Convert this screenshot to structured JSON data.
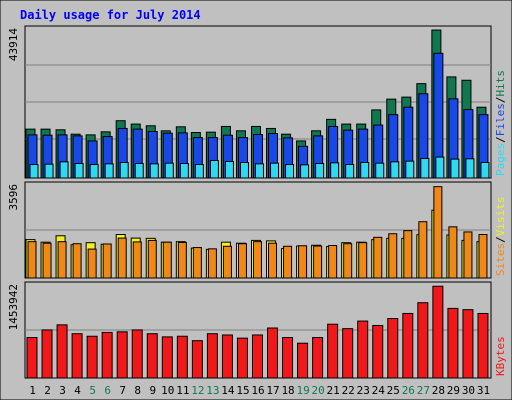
{
  "chart_data": [
    {
      "type": "bar",
      "title": "Daily usage for July 2014",
      "ymax_label": "43914",
      "ylim": [
        0,
        43914
      ],
      "categories": [
        "1",
        "2",
        "3",
        "4",
        "5",
        "6",
        "7",
        "8",
        "9",
        "10",
        "11",
        "12",
        "13",
        "14",
        "15",
        "16",
        "17",
        "18",
        "19",
        "20",
        "21",
        "22",
        "23",
        "24",
        "25",
        "26",
        "27",
        "28",
        "29",
        "30",
        "31"
      ],
      "weekend_days": [
        "5",
        "6",
        "12",
        "13",
        "19",
        "20",
        "26",
        "27"
      ],
      "legend": [
        "Pages",
        "/",
        "Files",
        "/",
        "Hits"
      ],
      "series": [
        {
          "name": "Hits",
          "color": "#107850",
          "values": [
            14500,
            14500,
            14300,
            13000,
            12800,
            13700,
            17000,
            16000,
            15500,
            14000,
            15200,
            13500,
            13600,
            15300,
            14000,
            15300,
            14700,
            13000,
            11000,
            14000,
            17400,
            16000,
            16000,
            20200,
            23400,
            24000,
            28000,
            43900,
            30000,
            29000,
            21000
          ]
        },
        {
          "name": "Files",
          "color": "#1848e8",
          "values": [
            12800,
            12700,
            12800,
            12500,
            11000,
            12300,
            14700,
            14500,
            13800,
            13300,
            13400,
            12000,
            12000,
            12700,
            12000,
            12900,
            13200,
            11900,
            9400,
            12500,
            15300,
            14200,
            14500,
            15700,
            18800,
            21000,
            25000,
            37000,
            23500,
            20300,
            18800
          ]
        },
        {
          "name": "Pages",
          "color": "#30d8f0",
          "values": [
            4000,
            4100,
            4800,
            4300,
            4000,
            4200,
            4600,
            4300,
            4200,
            4400,
            4300,
            4000,
            5200,
            4900,
            4600,
            4200,
            4400,
            4000,
            3900,
            4300,
            4500,
            4000,
            4600,
            4400,
            4800,
            5000,
            5800,
            6200,
            5600,
            5700,
            4600
          ]
        }
      ]
    },
    {
      "type": "bar",
      "ymax_label": "3596",
      "ylim": [
        0,
        3596
      ],
      "legend": [
        "Sites",
        "/",
        "Visits"
      ],
      "series": [
        {
          "name": "Visits",
          "color": "#f0f028",
          "values": [
            1500,
            1400,
            1650,
            1300,
            1380,
            1320,
            1700,
            1560,
            1550,
            1400,
            1420,
            1170,
            1120,
            1400,
            1360,
            1470,
            1450,
            1150,
            1250,
            1280,
            1230,
            1380,
            1400,
            1500,
            1550,
            1550,
            1690,
            2650,
            1680,
            1470,
            1420
          ]
        },
        {
          "name": "Sites",
          "color": "#f08818",
          "values": [
            1420,
            1360,
            1420,
            1340,
            1130,
            1330,
            1560,
            1410,
            1470,
            1400,
            1390,
            1190,
            1140,
            1240,
            1340,
            1420,
            1360,
            1240,
            1260,
            1250,
            1270,
            1340,
            1380,
            1590,
            1730,
            1850,
            2200,
            3570,
            2000,
            1800,
            1700
          ]
        }
      ]
    },
    {
      "type": "bar",
      "ymax_label": "1453942",
      "ylim": [
        0,
        1453942
      ],
      "legend": [
        "KBytes"
      ],
      "series": [
        {
          "name": "KBytes",
          "color": "#f01818",
          "values": [
            640000,
            760000,
            840000,
            700000,
            660000,
            720000,
            730000,
            760000,
            700000,
            650000,
            660000,
            590000,
            700000,
            680000,
            630000,
            680000,
            790000,
            640000,
            550000,
            640000,
            850000,
            780000,
            900000,
            830000,
            940000,
            1020000,
            1190000,
            1450000,
            1100000,
            1080000,
            1020000
          ]
        }
      ]
    }
  ]
}
